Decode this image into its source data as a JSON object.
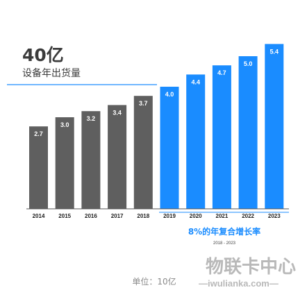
{
  "chart_data": {
    "type": "bar",
    "headline": "40亿",
    "subtitle": "设备年出货量",
    "categories": [
      "2014",
      "2015",
      "2016",
      "2017",
      "2018",
      "2019",
      "2020",
      "2021",
      "2022",
      "2023"
    ],
    "values": [
      2.7,
      3.0,
      3.2,
      3.4,
      3.7,
      4.0,
      4.4,
      4.7,
      5.0,
      5.4
    ],
    "value_labels": [
      "2.7",
      "3.0",
      "3.2",
      "3.4",
      "3.7",
      "4.0",
      "4.4",
      "4.7",
      "5.0",
      "5.4"
    ],
    "historical_count": 5,
    "colors": {
      "historical": "#5f5f5f",
      "forecast": "#1a8cff",
      "accent": "#1a8cff"
    },
    "annotation": {
      "text": "8%的年复合增长率",
      "range": "2018 - 2023"
    },
    "unit_note": "单位：10亿",
    "ylim": [
      0,
      5.4
    ]
  },
  "watermark": {
    "text": "物联卡中心",
    "subtext": "—iwulianka.com—"
  }
}
